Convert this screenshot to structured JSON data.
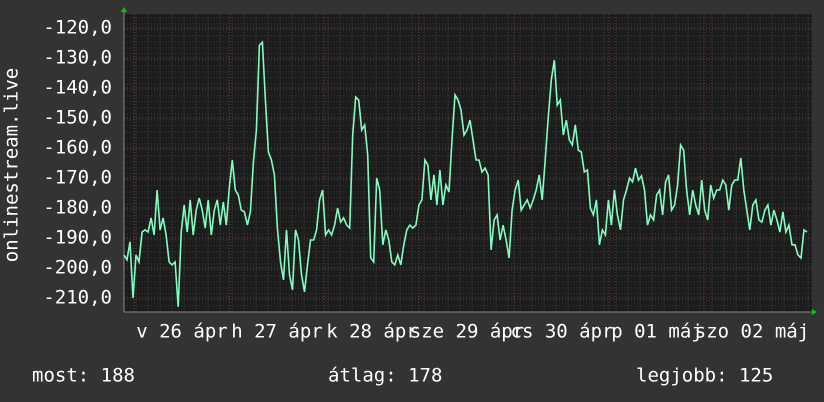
{
  "chart_data": {
    "type": "line",
    "y_label": "onlinestream.live",
    "x_labels": [
      "v 26 ápr",
      "h 27 ápr",
      "k 28 ápr",
      "sze 29 ápr",
      "cs 30 ápr",
      "p 01 máj",
      "szo 02 máj"
    ],
    "ylim": [
      -214.7,
      -115.3
    ],
    "yticks": [
      {
        "value": -120,
        "label": "-120,0"
      },
      {
        "value": -130,
        "label": "-130,0"
      },
      {
        "value": -140,
        "label": "-140,0"
      },
      {
        "value": -150,
        "label": "-150,0"
      },
      {
        "value": -160,
        "label": "-160,0"
      },
      {
        "value": -170,
        "label": "-170,0"
      },
      {
        "value": -180,
        "label": "-180,0"
      },
      {
        "value": -190,
        "label": "-190,0"
      },
      {
        "value": -200,
        "label": "-200,0"
      },
      {
        "value": -210,
        "label": "-210,0"
      }
    ],
    "grid": true,
    "series": [
      {
        "color": "#80ffc0",
        "values": [
          -195.7,
          -197.3,
          -191.3,
          -210,
          -195.7,
          -198,
          -188,
          -187.3,
          -188,
          -183.3,
          -189,
          -174,
          -187.3,
          -183.3,
          -189,
          -198,
          -199,
          -198,
          -213,
          -188,
          -179,
          -188,
          -177.3,
          -189,
          -180.7,
          -176.7,
          -180.7,
          -186.7,
          -177.3,
          -189,
          -180.7,
          -177.3,
          -185.7,
          -178,
          -185.7,
          -173.3,
          -164,
          -174,
          -175.7,
          -180.7,
          -181.3,
          -185.7,
          -181.3,
          -164.7,
          -154,
          -125.7,
          -124.7,
          -144,
          -161.3,
          -164,
          -169,
          -186.7,
          -198,
          -204,
          -187.3,
          -202.3,
          -207.3,
          -187.3,
          -190.7,
          -202.3,
          -208,
          -199,
          -190.7,
          -190.7,
          -187.3,
          -177.3,
          -174,
          -189,
          -187.3,
          -189,
          -185.7,
          -180,
          -184.7,
          -183.3,
          -185.7,
          -186.7,
          -155.7,
          -143,
          -144,
          -154,
          -152.3,
          -162.3,
          -196.7,
          -198,
          -170,
          -174,
          -192.3,
          -187.3,
          -190.7,
          -198,
          -199,
          -195.7,
          -199,
          -192.3,
          -187.3,
          -185.7,
          -186.7,
          -185.7,
          -179,
          -177.3,
          -164,
          -165.7,
          -177.3,
          -169,
          -179,
          -167.3,
          -179,
          -172.3,
          -174.7,
          -157.3,
          -142.3,
          -144,
          -147.3,
          -155.7,
          -154,
          -150.7,
          -157.3,
          -164,
          -164,
          -168,
          -166.7,
          -169,
          -194,
          -184,
          -182.3,
          -190.7,
          -185.7,
          -190.7,
          -196.7,
          -180.7,
          -174,
          -170.7,
          -180.7,
          -179,
          -177.3,
          -180,
          -177.3,
          -174,
          -169,
          -177.3,
          -164,
          -150,
          -137.3,
          -130.7,
          -145.7,
          -144,
          -155.7,
          -150.7,
          -157.3,
          -159,
          -152.3,
          -160.7,
          -161.3,
          -168,
          -167.3,
          -180,
          -182.3,
          -177.3,
          -192.3,
          -187.3,
          -189,
          -177.3,
          -185.7,
          -174,
          -182.3,
          -187.3,
          -177.3,
          -174,
          -170,
          -171.3,
          -166.7,
          -170.7,
          -169.3,
          -174,
          -185.7,
          -182.3,
          -184,
          -175.7,
          -174,
          -182.3,
          -171.3,
          -169,
          -180.7,
          -179,
          -172.3,
          -159,
          -160.7,
          -174,
          -182.3,
          -174,
          -179,
          -182.3,
          -170.7,
          -180.7,
          -184,
          -172.3,
          -176.7,
          -174,
          -174,
          -170.7,
          -172.3,
          -180.7,
          -172.3,
          -170.7,
          -170.7,
          -163.3,
          -174,
          -180.7,
          -187.3,
          -179,
          -177.3,
          -184,
          -184.7,
          -180.7,
          -179,
          -185.7,
          -180.7,
          -184,
          -188,
          -181.3,
          -188,
          -185.7,
          -192.3,
          -192.3,
          -195.7,
          -196.7,
          -187.3,
          -188
        ]
      }
    ],
    "footer": [
      "most: 188",
      "átlag: 178",
      "legjobb: 125"
    ]
  }
}
